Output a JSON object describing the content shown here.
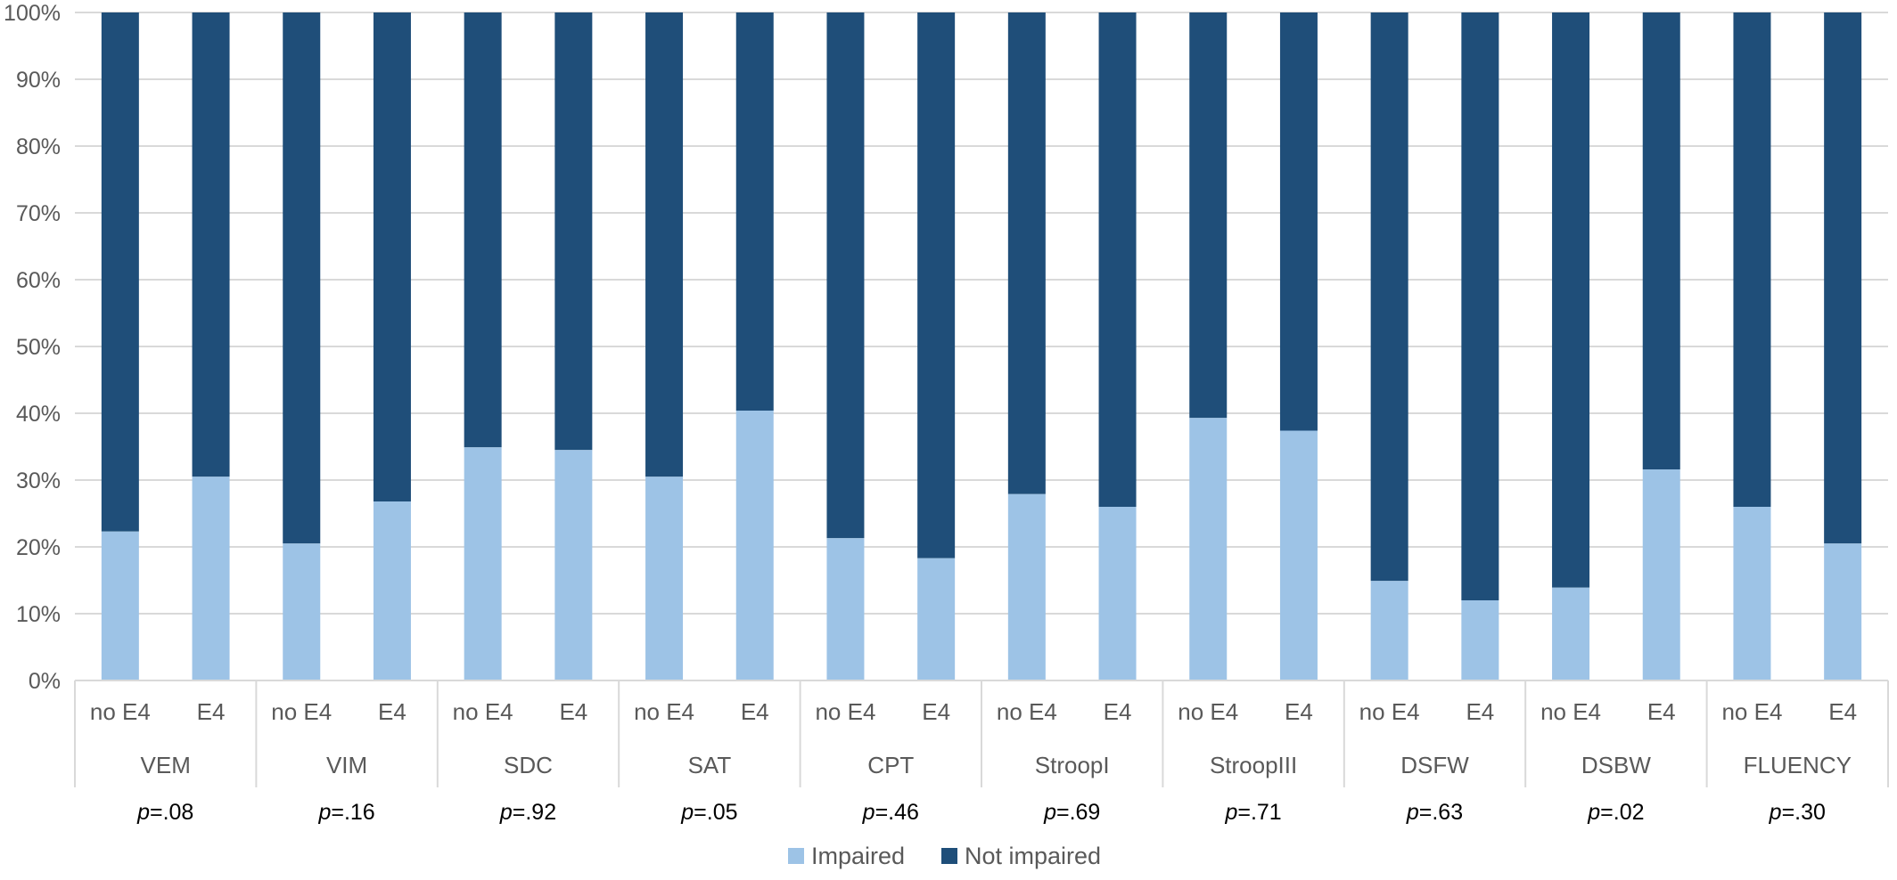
{
  "chart_data": {
    "type": "bar",
    "stacked": true,
    "percent_stacked": true,
    "groups": [
      {
        "name": "VEM",
        "p_prefix": "p",
        "p_value": "=.08",
        "bars": [
          {
            "label": "no E4",
            "impaired": 22.3
          },
          {
            "label": "E4",
            "impaired": 30.5
          }
        ]
      },
      {
        "name": "VIM",
        "p_prefix": "p",
        "p_value": "=.16",
        "bars": [
          {
            "label": "no E4",
            "impaired": 20.5
          },
          {
            "label": "E4",
            "impaired": 26.8
          }
        ]
      },
      {
        "name": "SDC",
        "p_prefix": "p",
        "p_value": "=.92",
        "bars": [
          {
            "label": "no E4",
            "impaired": 34.9
          },
          {
            "label": "E4",
            "impaired": 34.5
          }
        ]
      },
      {
        "name": "SAT",
        "p_prefix": "p",
        "p_value": "=.05",
        "bars": [
          {
            "label": "no E4",
            "impaired": 30.5
          },
          {
            "label": "E4",
            "impaired": 40.4
          }
        ]
      },
      {
        "name": "CPT",
        "p_prefix": "p",
        "p_value": "=.46",
        "bars": [
          {
            "label": "no E4",
            "impaired": 21.3
          },
          {
            "label": "E4",
            "impaired": 18.3
          }
        ]
      },
      {
        "name": "StroopI",
        "p_prefix": "p",
        "p_value": "=.69",
        "bars": [
          {
            "label": "no E4",
            "impaired": 27.9
          },
          {
            "label": "E4",
            "impaired": 26.0
          }
        ]
      },
      {
        "name": "StroopIII",
        "p_prefix": "p",
        "p_value": "=.71",
        "bars": [
          {
            "label": "no E4",
            "impaired": 39.3
          },
          {
            "label": "E4",
            "impaired": 37.4
          }
        ]
      },
      {
        "name": "DSFW",
        "p_prefix": "p",
        "p_value": "=.63",
        "bars": [
          {
            "label": "no E4",
            "impaired": 14.9
          },
          {
            "label": "E4",
            "impaired": 12.0
          }
        ]
      },
      {
        "name": "DSBW",
        "p_prefix": "p",
        "p_value": "=.02",
        "bars": [
          {
            "label": "no E4",
            "impaired": 13.9
          },
          {
            "label": "E4",
            "impaired": 31.6
          }
        ]
      },
      {
        "name": "FLUENCY",
        "p_prefix": "p",
        "p_value": "=.30",
        "bars": [
          {
            "label": "no E4",
            "impaired": 26.0
          },
          {
            "label": "E4",
            "impaired": 20.5
          }
        ]
      }
    ],
    "series": [
      {
        "name": "Impaired",
        "color": "#9dc3e6"
      },
      {
        "name": "Not impaired",
        "color": "#1f4e79"
      }
    ],
    "yticks": [
      "0%",
      "10%",
      "20%",
      "30%",
      "40%",
      "50%",
      "60%",
      "70%",
      "80%",
      "90%",
      "100%"
    ],
    "ylim": [
      0,
      100
    ],
    "grid": true,
    "legend_position": "bottom",
    "title": "",
    "xlabel": "",
    "ylabel": ""
  }
}
